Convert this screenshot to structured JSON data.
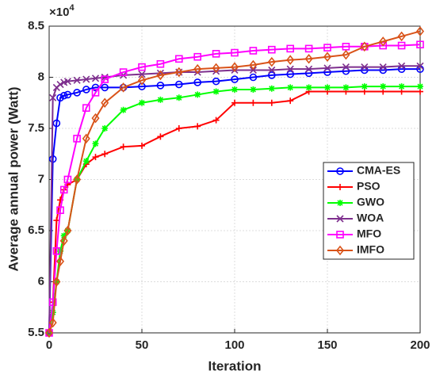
{
  "chart_data": {
    "type": "line",
    "x_label": "Iteration",
    "y_label": "Average annual power (Watt)",
    "y_multiplier": {
      "base": "×10",
      "exponent": "4"
    },
    "x": [
      0,
      2,
      4,
      6,
      8,
      10,
      15,
      20,
      25,
      30,
      40,
      50,
      60,
      70,
      80,
      90,
      100,
      110,
      120,
      130,
      140,
      150,
      160,
      170,
      180,
      190,
      200
    ],
    "series": [
      {
        "name": "CMA-ES",
        "color": "#0000ff",
        "marker": "circle",
        "values": [
          5.5,
          7.2,
          7.55,
          7.8,
          7.82,
          7.83,
          7.85,
          7.88,
          7.9,
          7.9,
          7.9,
          7.91,
          7.92,
          7.93,
          7.95,
          7.96,
          7.98,
          8.0,
          8.02,
          8.03,
          8.04,
          8.05,
          8.06,
          8.07,
          8.07,
          8.08,
          8.08
        ]
      },
      {
        "name": "PSO",
        "color": "#ff0000",
        "marker": "plus",
        "values": [
          5.5,
          5.8,
          6.6,
          6.8,
          6.9,
          6.95,
          7.0,
          7.15,
          7.22,
          7.25,
          7.32,
          7.33,
          7.42,
          7.5,
          7.52,
          7.58,
          7.75,
          7.75,
          7.75,
          7.77,
          7.86,
          7.86,
          7.86,
          7.86,
          7.86,
          7.86,
          7.86
        ]
      },
      {
        "name": "GWO",
        "color": "#00ff00",
        "marker": "asterisk",
        "values": [
          5.5,
          5.7,
          6.0,
          6.3,
          6.45,
          6.5,
          7.0,
          7.18,
          7.35,
          7.5,
          7.68,
          7.75,
          7.78,
          7.8,
          7.83,
          7.86,
          7.88,
          7.88,
          7.89,
          7.9,
          7.9,
          7.9,
          7.9,
          7.91,
          7.91,
          7.91,
          7.91
        ]
      },
      {
        "name": "WOA",
        "color": "#7e2f8e",
        "marker": "x",
        "values": [
          5.5,
          7.8,
          7.9,
          7.93,
          7.95,
          7.96,
          7.97,
          7.98,
          7.99,
          8.0,
          8.02,
          8.03,
          8.04,
          8.05,
          8.05,
          8.06,
          8.07,
          8.07,
          8.07,
          8.08,
          8.08,
          8.09,
          8.1,
          8.1,
          8.1,
          8.11,
          8.11
        ]
      },
      {
        "name": "MFO",
        "color": "#ff00ff",
        "marker": "square",
        "values": [
          5.5,
          5.8,
          6.3,
          6.7,
          6.9,
          7.0,
          7.4,
          7.7,
          7.85,
          7.98,
          8.05,
          8.1,
          8.13,
          8.18,
          8.2,
          8.23,
          8.24,
          8.26,
          8.27,
          8.28,
          8.28,
          8.29,
          8.3,
          8.3,
          8.31,
          8.31,
          8.32
        ]
      },
      {
        "name": "IMFO",
        "color": "#d95319",
        "marker": "diamond",
        "values": [
          5.5,
          5.6,
          6.0,
          6.2,
          6.4,
          6.5,
          7.0,
          7.4,
          7.6,
          7.75,
          7.9,
          7.97,
          8.02,
          8.05,
          8.08,
          8.09,
          8.1,
          8.12,
          8.15,
          8.17,
          8.18,
          8.2,
          8.22,
          8.3,
          8.35,
          8.4,
          8.45
        ]
      }
    ],
    "xlim": [
      0,
      200
    ],
    "xticks": [
      0,
      50,
      100,
      150,
      200
    ],
    "ylim": [
      5.5,
      8.5
    ],
    "yticks": [
      5.5,
      6,
      6.5,
      7,
      7.5,
      8,
      8.5
    ],
    "grid": true,
    "legend": "right"
  }
}
